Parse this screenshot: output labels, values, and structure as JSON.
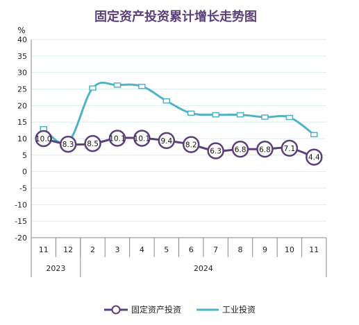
{
  "chart_data": {
    "type": "line",
    "title": "固定资产投资累计增长走势图",
    "y_unit": "%",
    "ylim": [
      -20,
      40
    ],
    "yticks": [
      40,
      35,
      30,
      25,
      20,
      15,
      10,
      5,
      0,
      -5,
      -10,
      -15,
      -20
    ],
    "grid": true,
    "legend_position": "bottom",
    "categories": [
      "11",
      "12",
      "2",
      "3",
      "4",
      "5",
      "6",
      "7",
      "8",
      "9",
      "10",
      "11"
    ],
    "year_groups": [
      {
        "label": "2023",
        "from": 0,
        "to": 1
      },
      {
        "label": "2024",
        "from": 2,
        "to": 11
      }
    ],
    "series": [
      {
        "name": "固定资产投资",
        "color": "#5b3f7a",
        "marker": "circle",
        "values": [
          10.0,
          8.3,
          8.5,
          10.1,
          10.1,
          9.4,
          8.2,
          6.3,
          6.8,
          6.8,
          7.1,
          4.4
        ],
        "data_labels": [
          "10.0",
          "8.3",
          "8.5",
          "10.1",
          "10.1",
          "9.4",
          "8.2",
          "6.3",
          "6.8",
          "6.8",
          "7.1",
          "4.4"
        ]
      },
      {
        "name": "工业投资",
        "color": "#4fb3c4",
        "marker": "square",
        "values": [
          13.0,
          9.0,
          25.3,
          26.2,
          25.8,
          21.4,
          17.7,
          17.2,
          17.2,
          16.5,
          16.4,
          11.2
        ]
      }
    ]
  }
}
